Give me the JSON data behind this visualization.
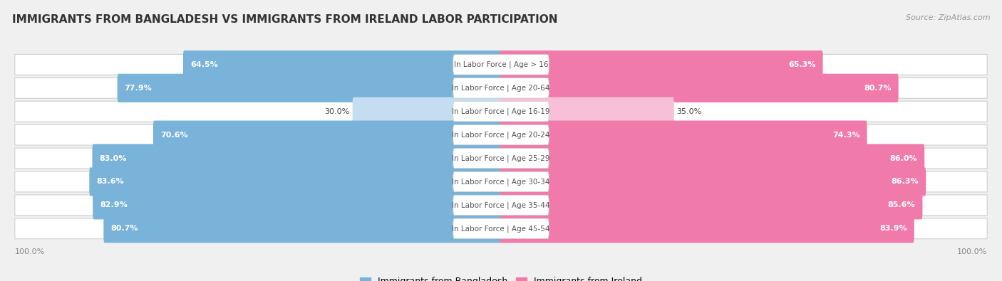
{
  "title": "IMMIGRANTS FROM BANGLADESH VS IMMIGRANTS FROM IRELAND LABOR PARTICIPATION",
  "source": "Source: ZipAtlas.com",
  "categories": [
    "In Labor Force | Age > 16",
    "In Labor Force | Age 20-64",
    "In Labor Force | Age 16-19",
    "In Labor Force | Age 20-24",
    "In Labor Force | Age 25-29",
    "In Labor Force | Age 30-34",
    "In Labor Force | Age 35-44",
    "In Labor Force | Age 45-54"
  ],
  "bangladesh_values": [
    64.5,
    77.9,
    30.0,
    70.6,
    83.0,
    83.6,
    82.9,
    80.7
  ],
  "ireland_values": [
    65.3,
    80.7,
    35.0,
    74.3,
    86.0,
    86.3,
    85.6,
    83.9
  ],
  "bangladesh_color": "#7ab3d9",
  "ireland_color": "#f07aaa",
  "bangladesh_color_light": "#c5ddf0",
  "ireland_color_light": "#f7c0d8",
  "background_color": "#f0f0f0",
  "row_bg_color": "#ffffff",
  "max_value": 100.0,
  "legend_bangladesh": "Immigrants from Bangladesh",
  "legend_ireland": "Immigrants from Ireland",
  "title_fontsize": 11,
  "label_fontsize": 7.5,
  "value_fontsize": 8,
  "axis_label_fontsize": 8
}
